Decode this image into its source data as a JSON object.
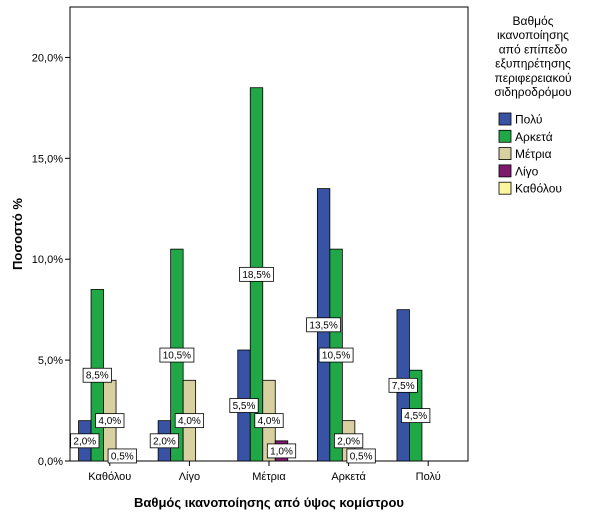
{
  "chart_data": {
    "type": "bar",
    "xlabel": "Βαθμός ικανοποίησης από ύψος κομίστρου",
    "ylabel": "Ποσοστό %",
    "ylim": [
      0,
      22.5
    ],
    "yticks": [
      "0,0%",
      "5,0%",
      "10,0%",
      "15,0%",
      "20,0%"
    ],
    "ytick_values": [
      0,
      5,
      10,
      15,
      20
    ],
    "categories": [
      "Καθόλου",
      "Λίγο",
      "Μέτρια",
      "Αρκετά",
      "Πολύ"
    ],
    "legend_title": [
      "Βαθμός",
      "ικανοποίησης",
      "από επίπεδο",
      "εξυπηρέτησης",
      "περιφερειακού",
      "σιδηροδρόμου"
    ],
    "legend_position": "right",
    "series": [
      {
        "name": "Πολύ",
        "color": "#3953a4",
        "values": [
          2.0,
          2.0,
          5.5,
          13.5,
          7.5
        ],
        "labels": [
          "2,0%",
          "2,0%",
          "5,5%",
          "13,5%",
          "7,5%"
        ]
      },
      {
        "name": "Αρκετά",
        "color": "#21a846",
        "values": [
          8.5,
          10.5,
          18.5,
          10.5,
          4.5
        ],
        "labels": [
          "8,5%",
          "10,5%",
          "18,5%",
          "10,5%",
          "4,5%"
        ]
      },
      {
        "name": "Μέτρια",
        "color": "#d8d0a0",
        "values": [
          4.0,
          4.0,
          4.0,
          2.0,
          null
        ],
        "labels": [
          "4,0%",
          "4,0%",
          "4,0%",
          "2,0%",
          null
        ]
      },
      {
        "name": "Λίγο",
        "color": "#7e1a6e",
        "values": [
          0.5,
          null,
          1.0,
          0.5,
          null
        ],
        "labels": [
          "0,5%",
          null,
          "1,0%",
          "0,5%",
          null
        ]
      },
      {
        "name": "Καθόλου",
        "color": "#fbf5a0",
        "values": [
          null,
          null,
          null,
          null,
          null
        ],
        "labels": [
          null,
          null,
          null,
          null,
          null
        ]
      }
    ]
  }
}
